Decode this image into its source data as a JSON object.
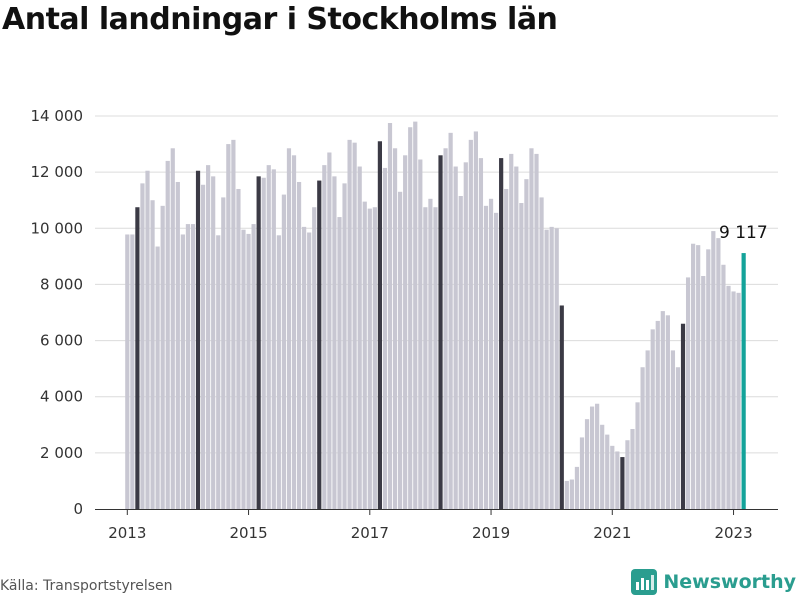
{
  "title": "Antal landningar i Stockholms län",
  "source": "Källa: Transportstyrelsen",
  "brand": {
    "name": "Newsworthy",
    "color": "#2a9d8f"
  },
  "chart_data": {
    "type": "bar",
    "title": "Antal landningar i Stockholms län",
    "xlabel": "",
    "ylabel": "",
    "ylim": [
      0,
      14000
    ],
    "yticks": [
      0,
      2000,
      4000,
      6000,
      8000,
      10000,
      12000,
      14000
    ],
    "ytick_labels": [
      "0",
      "2 000",
      "4 000",
      "6 000",
      "8 000",
      "10 000",
      "12 000",
      "14 000"
    ],
    "xtick_labels": [
      "2013",
      "2015",
      "2017",
      "2019",
      "2021",
      "2023"
    ],
    "grid": true,
    "colors": {
      "bar": "#c8c7d2",
      "january": "#3b3a45",
      "latest": "#14a39a"
    },
    "start": "2013-01",
    "annotation": "9 117",
    "values": [
      9780,
      9780,
      10750,
      11600,
      12050,
      11000,
      9350,
      10800,
      12400,
      12850,
      11650,
      9780,
      10150,
      10150,
      12050,
      11550,
      12250,
      11850,
      9750,
      11100,
      13000,
      13150,
      11400,
      9950,
      9800,
      10150,
      11850,
      11800,
      12250,
      12100,
      9750,
      11200,
      12850,
      12600,
      11650,
      10050,
      9850,
      10750,
      11700,
      12250,
      12700,
      11850,
      10400,
      11600,
      13150,
      13050,
      12200,
      10950,
      10700,
      10750,
      13100,
      12150,
      13750,
      12850,
      11300,
      12600,
      13600,
      13800,
      12450,
      10750,
      11050,
      10750,
      12600,
      12850,
      13400,
      12200,
      11150,
      12350,
      13150,
      13450,
      12500,
      10800,
      11050,
      10550,
      12500,
      11400,
      12650,
      12200,
      10900,
      11750,
      12850,
      12650,
      11100,
      9950,
      10050,
      10000,
      7250,
      1000,
      1050,
      1500,
      2550,
      3200,
      3650,
      3750,
      3000,
      2650,
      2250,
      2050,
      1850,
      2450,
      2850,
      3800,
      5050,
      5650,
      6400,
      6700,
      7050,
      6900,
      5650,
      5050,
      6600,
      8250,
      9450,
      9400,
      8300,
      9250,
      9900,
      9650,
      8700,
      7950,
      7750,
      7700,
      9117
    ]
  }
}
